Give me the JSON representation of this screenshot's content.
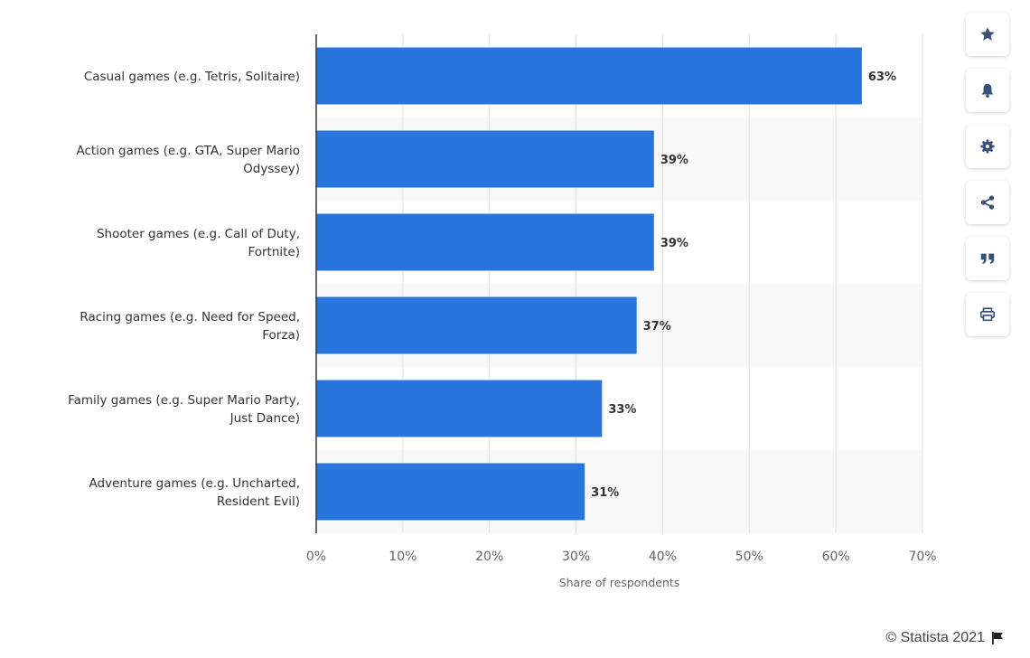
{
  "chart_data": {
    "type": "bar",
    "orientation": "horizontal",
    "categories": [
      "Casual games (e.g. Tetris, Solitaire)",
      "Action games (e.g. GTA, Super Mario Odyssey)",
      "Shooter games (e.g. Call of Duty, Fortnite)",
      "Racing games (e.g. Need for Speed, Forza)",
      "Family games (e.g. Super Mario Party, Just Dance)",
      "Adventure games (e.g. Uncharted, Resident Evil)"
    ],
    "category_lines": [
      [
        "Casual games (e.g. Tetris, Solitaire)"
      ],
      [
        "Action games (e.g. GTA, Super Mario",
        "Odyssey)"
      ],
      [
        "Shooter games (e.g. Call of Duty,",
        "Fortnite)"
      ],
      [
        "Racing games (e.g. Need for Speed,",
        "Forza)"
      ],
      [
        "Family games (e.g. Super Mario Party,",
        "Just Dance)"
      ],
      [
        "Adventure games (e.g. Uncharted,",
        "Resident Evil)"
      ]
    ],
    "values": [
      63,
      39,
      39,
      37,
      33,
      31
    ],
    "value_labels": [
      "63%",
      "39%",
      "39%",
      "37%",
      "33%",
      "31%"
    ],
    "xlabel": "Share of respondents",
    "ylabel": "",
    "xlim": [
      0,
      70
    ],
    "ticks": [
      0,
      10,
      20,
      30,
      40,
      50,
      60,
      70
    ],
    "tick_labels": [
      "0%",
      "10%",
      "20%",
      "30%",
      "40%",
      "50%",
      "60%",
      "70%"
    ],
    "grid": true,
    "bar_color": "#2876dd"
  },
  "toolbar": {
    "buttons": [
      {
        "name": "favorite",
        "icon": "star-icon"
      },
      {
        "name": "notify",
        "icon": "bell-icon"
      },
      {
        "name": "settings",
        "icon": "gear-icon"
      },
      {
        "name": "share",
        "icon": "share-icon"
      },
      {
        "name": "cite",
        "icon": "quote-icon"
      },
      {
        "name": "print",
        "icon": "print-icon"
      }
    ],
    "icon_color": "#3b5078"
  },
  "credit": {
    "text": "© Statista 2021",
    "icon": "flag-icon"
  }
}
